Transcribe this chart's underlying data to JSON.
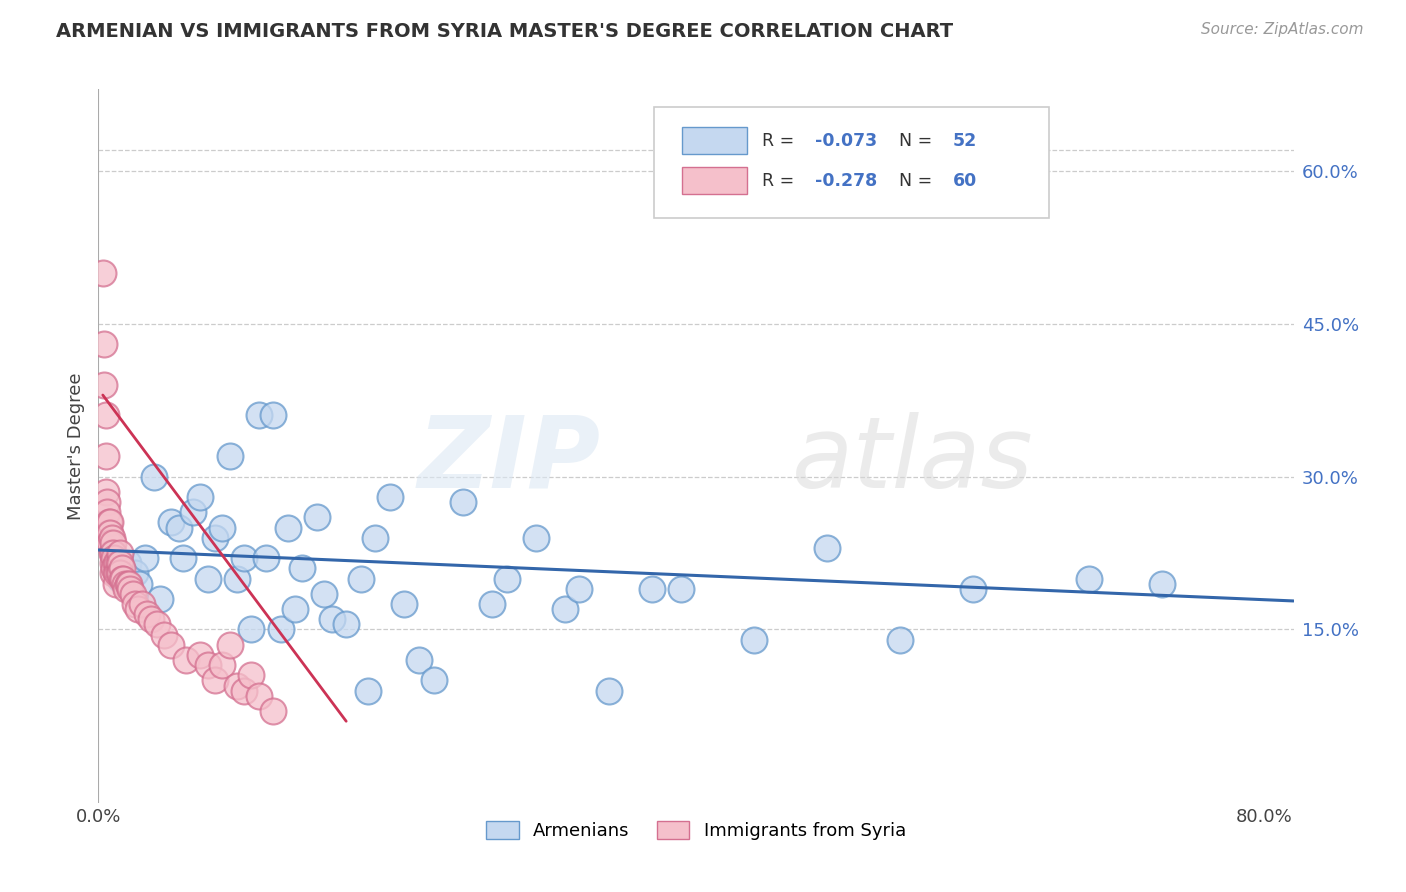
{
  "title": "ARMENIAN VS IMMIGRANTS FROM SYRIA MASTER'S DEGREE CORRELATION CHART",
  "source": "Source: ZipAtlas.com",
  "ylabel": "Master's Degree",
  "xlim": [
    0.0,
    0.82
  ],
  "ylim": [
    -0.02,
    0.68
  ],
  "ytick_positions": [
    0.15,
    0.3,
    0.45,
    0.6
  ],
  "ytick_labels": [
    "15.0%",
    "30.0%",
    "45.0%",
    "60.0%"
  ],
  "armenian_color": "#c5d8f0",
  "armenian_edge": "#6699cc",
  "syria_color": "#f5c0cb",
  "syria_edge": "#d47090",
  "line_armenian": "#3366aa",
  "line_syria": "#cc3355",
  "background": "#ffffff",
  "grid_color": "#cccccc",
  "armenian_scatter_x": [
    0.015,
    0.02,
    0.025,
    0.028,
    0.032,
    0.038,
    0.042,
    0.05,
    0.055,
    0.058,
    0.065,
    0.07,
    0.075,
    0.08,
    0.085,
    0.09,
    0.095,
    0.1,
    0.105,
    0.11,
    0.115,
    0.12,
    0.125,
    0.13,
    0.135,
    0.14,
    0.15,
    0.155,
    0.16,
    0.17,
    0.18,
    0.185,
    0.19,
    0.2,
    0.21,
    0.22,
    0.23,
    0.25,
    0.27,
    0.28,
    0.3,
    0.32,
    0.33,
    0.35,
    0.38,
    0.4,
    0.45,
    0.5,
    0.55,
    0.6,
    0.68,
    0.73
  ],
  "armenian_scatter_y": [
    0.2,
    0.215,
    0.205,
    0.195,
    0.22,
    0.3,
    0.18,
    0.255,
    0.25,
    0.22,
    0.265,
    0.28,
    0.2,
    0.24,
    0.25,
    0.32,
    0.2,
    0.22,
    0.15,
    0.36,
    0.22,
    0.36,
    0.15,
    0.25,
    0.17,
    0.21,
    0.26,
    0.185,
    0.16,
    0.155,
    0.2,
    0.09,
    0.24,
    0.28,
    0.175,
    0.12,
    0.1,
    0.275,
    0.175,
    0.2,
    0.24,
    0.17,
    0.19,
    0.09,
    0.19,
    0.19,
    0.14,
    0.23,
    0.14,
    0.19,
    0.2,
    0.195
  ],
  "armenia_trendline_x": [
    0.0,
    0.82
  ],
  "armenia_trendline_y": [
    0.228,
    0.178
  ],
  "syria_scatter_x": [
    0.003,
    0.004,
    0.004,
    0.005,
    0.005,
    0.005,
    0.006,
    0.006,
    0.007,
    0.007,
    0.007,
    0.008,
    0.008,
    0.008,
    0.009,
    0.009,
    0.01,
    0.01,
    0.01,
    0.01,
    0.011,
    0.011,
    0.012,
    0.012,
    0.012,
    0.013,
    0.013,
    0.014,
    0.014,
    0.015,
    0.015,
    0.015,
    0.016,
    0.016,
    0.017,
    0.018,
    0.019,
    0.02,
    0.021,
    0.022,
    0.024,
    0.025,
    0.027,
    0.03,
    0.033,
    0.036,
    0.04,
    0.045,
    0.05,
    0.06,
    0.07,
    0.075,
    0.08,
    0.085,
    0.09,
    0.095,
    0.1,
    0.105,
    0.11,
    0.12
  ],
  "syria_scatter_y": [
    0.5,
    0.43,
    0.39,
    0.36,
    0.32,
    0.285,
    0.275,
    0.265,
    0.255,
    0.245,
    0.235,
    0.255,
    0.245,
    0.235,
    0.24,
    0.225,
    0.235,
    0.225,
    0.215,
    0.205,
    0.22,
    0.21,
    0.215,
    0.205,
    0.195,
    0.215,
    0.205,
    0.215,
    0.205,
    0.225,
    0.215,
    0.205,
    0.21,
    0.2,
    0.2,
    0.195,
    0.19,
    0.195,
    0.195,
    0.19,
    0.185,
    0.175,
    0.17,
    0.175,
    0.165,
    0.16,
    0.155,
    0.145,
    0.135,
    0.12,
    0.125,
    0.115,
    0.1,
    0.115,
    0.135,
    0.095,
    0.09,
    0.105,
    0.085,
    0.07
  ],
  "syria_trendline_x": [
    0.003,
    0.17
  ],
  "syria_trendline_y": [
    0.38,
    0.06
  ]
}
